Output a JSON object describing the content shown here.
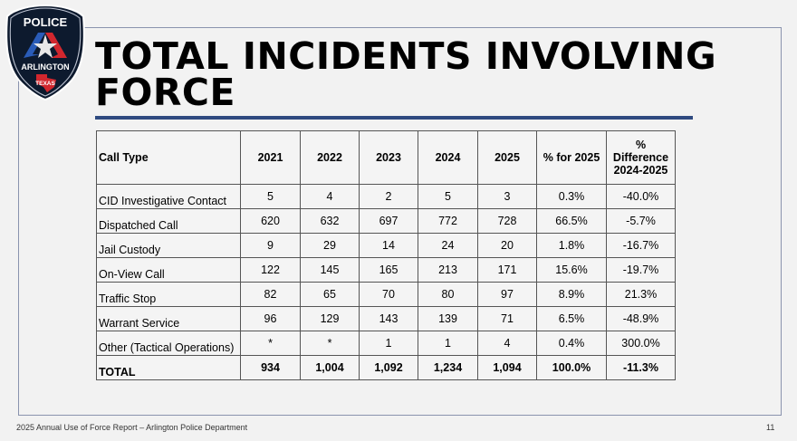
{
  "logo": {
    "top": "POLICE",
    "middle": "ARLINGTON",
    "bottom": "TEXAS"
  },
  "title": {
    "line1": "TOTAL INCIDENTS INVOLVING",
    "line2": "FORCE"
  },
  "table": {
    "headers": [
      "Call Type",
      "2021",
      "2022",
      "2023",
      "2024",
      "2025",
      "% for 2025",
      "% Difference 2024-2025"
    ],
    "rows": [
      [
        "CID Investigative Contact",
        "5",
        "4",
        "2",
        "5",
        "3",
        "0.3%",
        "-40.0%"
      ],
      [
        "Dispatched Call",
        "620",
        "632",
        "697",
        "772",
        "728",
        "66.5%",
        "-5.7%"
      ],
      [
        "Jail Custody",
        "9",
        "29",
        "14",
        "24",
        "20",
        "1.8%",
        "-16.7%"
      ],
      [
        "On-View Call",
        "122",
        "145",
        "165",
        "213",
        "171",
        "15.6%",
        "-19.7%"
      ],
      [
        "Traffic Stop",
        "82",
        "65",
        "70",
        "80",
        "97",
        "8.9%",
        "21.3%"
      ],
      [
        "Warrant Service",
        "96",
        "129",
        "143",
        "139",
        "71",
        "6.5%",
        "-48.9%"
      ],
      [
        "Other (Tactical Operations)",
        "*",
        "*",
        "1",
        "1",
        "4",
        "0.4%",
        "300.0%"
      ],
      [
        "TOTAL",
        "934",
        "1,004",
        "1,092",
        "1,234",
        "1,094",
        "100.0%",
        "-11.3%"
      ]
    ]
  },
  "footer": {
    "text": "2025 Annual Use of Force Report – Arlington Police Department",
    "page": "11"
  },
  "colors": {
    "rule": "#2f4a80",
    "frame": "#8a93ae"
  }
}
